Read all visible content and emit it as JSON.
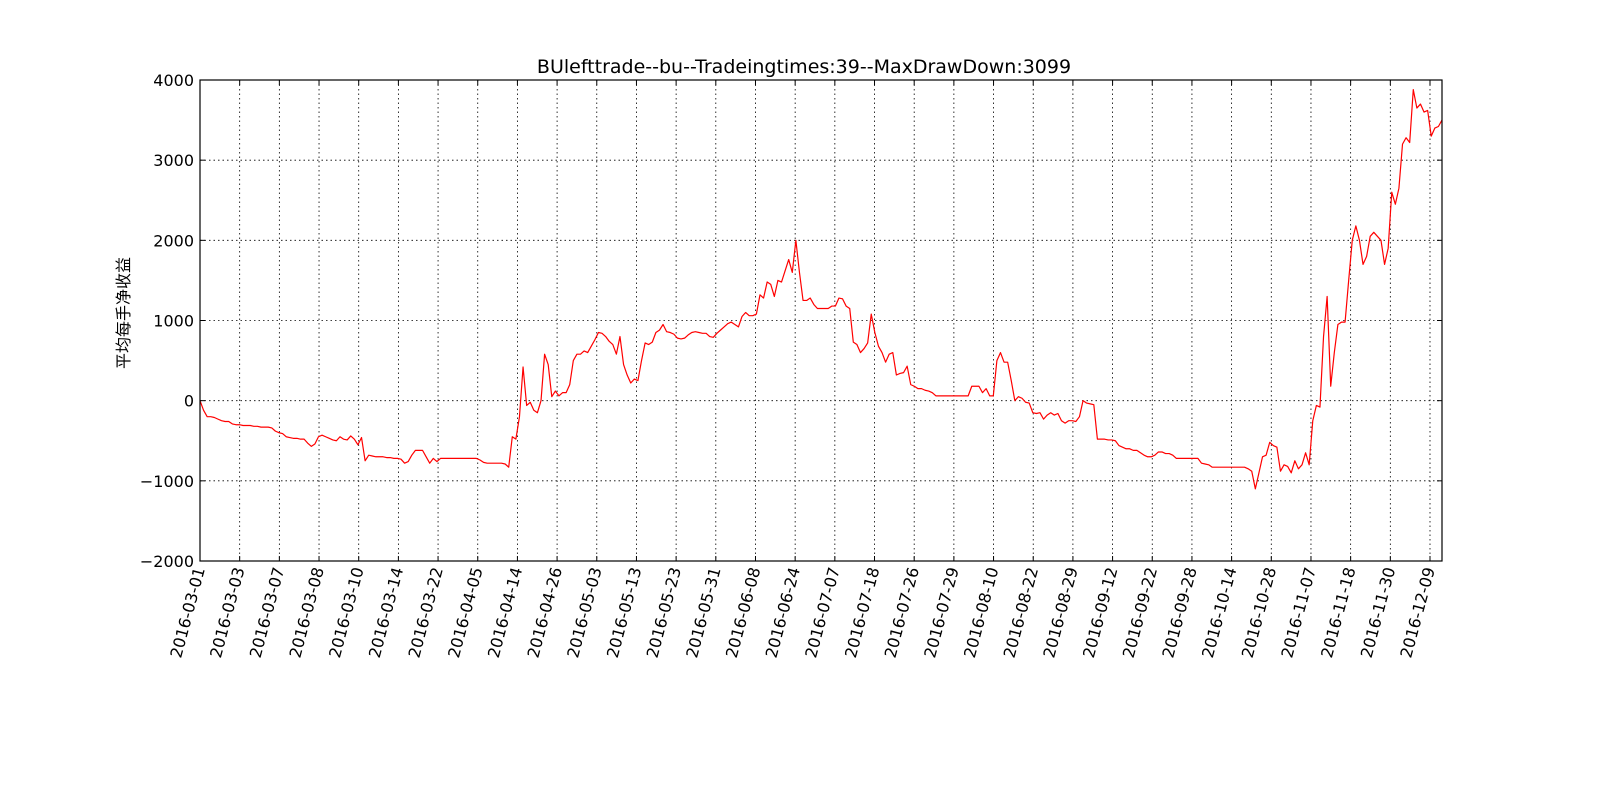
{
  "chart_data": {
    "type": "line",
    "title": "BUlefttrade--bu--Tradeingtimes:39--MaxDrawDown:3099",
    "xlabel": "",
    "ylabel": "平均每手净收益",
    "ylim": [
      -2000,
      4000
    ],
    "yticks": [
      -2000,
      -1000,
      0,
      1000,
      2000,
      3000,
      4000
    ],
    "ytick_labels": [
      "−2000",
      "−1000",
      "0",
      "1000",
      "2000",
      "3000",
      "4000"
    ],
    "xticks": [
      "2016-03-01",
      "2016-03-03",
      "2016-03-07",
      "2016-03-08",
      "2016-03-10",
      "2016-03-14",
      "2016-03-22",
      "2016-04-05",
      "2016-04-14",
      "2016-04-26",
      "2016-05-03",
      "2016-05-13",
      "2016-05-23",
      "2016-05-31",
      "2016-06-08",
      "2016-06-24",
      "2016-07-07",
      "2016-07-18",
      "2016-07-26",
      "2016-07-29",
      "2016-08-10",
      "2016-08-22",
      "2016-08-29",
      "2016-09-12",
      "2016-09-22",
      "2016-09-28",
      "2016-10-14",
      "2016-10-28",
      "2016-11-07",
      "2016-11-18",
      "2016-11-30",
      "2016-12-09"
    ],
    "grid": true,
    "color": "#ff0000",
    "series": [
      {
        "values": [
          0,
          -120,
          -200,
          -200,
          -210,
          -230,
          -250,
          -260,
          -260,
          -290,
          -300,
          -300,
          -310,
          -310,
          -310,
          -320,
          -320,
          -330,
          -330,
          -330,
          -340,
          -380,
          -400,
          -410,
          -450,
          -460,
          -470,
          -470,
          -480,
          -480,
          -530,
          -570,
          -540,
          -450,
          -430,
          -450,
          -470,
          -490,
          -500,
          -450,
          -480,
          -490,
          -440,
          -480,
          -550,
          -460,
          -750,
          -680,
          -690,
          -700,
          -700,
          -700,
          -710,
          -710,
          -720,
          -720,
          -730,
          -780,
          -760,
          -680,
          -620,
          -620,
          -620,
          -700,
          -780,
          -720,
          -760,
          -720,
          -720,
          -720,
          -720,
          -720,
          -720,
          -720,
          -720,
          -720,
          -720,
          -720,
          -740,
          -770,
          -780,
          -780,
          -780,
          -780,
          -780,
          -790,
          -830,
          -450,
          -480,
          -200,
          420,
          -60,
          -20,
          -120,
          -150,
          0,
          580,
          450,
          50,
          120,
          60,
          100,
          100,
          200,
          500,
          580,
          580,
          620,
          600,
          680,
          760,
          850,
          840,
          800,
          740,
          700,
          580,
          800,
          450,
          320,
          220,
          270,
          250,
          500,
          720,
          700,
          730,
          850,
          880,
          950,
          860,
          850,
          830,
          780,
          770,
          780,
          820,
          850,
          860,
          850,
          840,
          840,
          800,
          790,
          840,
          880,
          920,
          960,
          980,
          950,
          920,
          1050,
          1100,
          1060,
          1060,
          1080,
          1320,
          1280,
          1480,
          1450,
          1300,
          1500,
          1480,
          1620,
          1760,
          1600,
          2000,
          1600,
          1250,
          1250,
          1280,
          1200,
          1150,
          1150,
          1150,
          1150,
          1180,
          1180,
          1280,
          1270,
          1180,
          1150,
          730,
          700,
          600,
          650,
          720,
          1080,
          850,
          680,
          600,
          480,
          580,
          600,
          320,
          340,
          350,
          430,
          200,
          180,
          150,
          150,
          130,
          120,
          100,
          60,
          60,
          60,
          60,
          60,
          60,
          60,
          60,
          60,
          60,
          180,
          180,
          180,
          100,
          150,
          60,
          60,
          500,
          600,
          480,
          480,
          250,
          0,
          50,
          30,
          -20,
          -30,
          -150,
          -160,
          -150,
          -230,
          -180,
          -150,
          -180,
          -160,
          -250,
          -280,
          -250,
          -250,
          -260,
          -200,
          0,
          -30,
          -40,
          -50,
          -480,
          -480,
          -480,
          -490,
          -490,
          -500,
          -560,
          -580,
          -600,
          -600,
          -620,
          -620,
          -650,
          -680,
          -700,
          -700,
          -680,
          -640,
          -640,
          -660,
          -660,
          -680,
          -720,
          -720,
          -720,
          -720,
          -720,
          -720,
          -720,
          -780,
          -790,
          -800,
          -830,
          -830,
          -830,
          -830,
          -830,
          -830,
          -830,
          -830,
          -830,
          -830,
          -850,
          -880,
          -1100,
          -900,
          -700,
          -680,
          -520,
          -560,
          -580,
          -880,
          -800,
          -820,
          -900,
          -750,
          -850,
          -800,
          -650,
          -800,
          -250,
          -60,
          -80,
          800,
          1300,
          180,
          600,
          950,
          980,
          980,
          1500,
          2000,
          2180,
          2000,
          1700,
          1800,
          2050,
          2100,
          2050,
          2000,
          1700,
          1900,
          2600,
          2450,
          2650,
          3200,
          3280,
          3220,
          3880,
          3650,
          3700,
          3600,
          3620,
          3300,
          3400,
          3420,
          3500
        ]
      }
    ]
  }
}
